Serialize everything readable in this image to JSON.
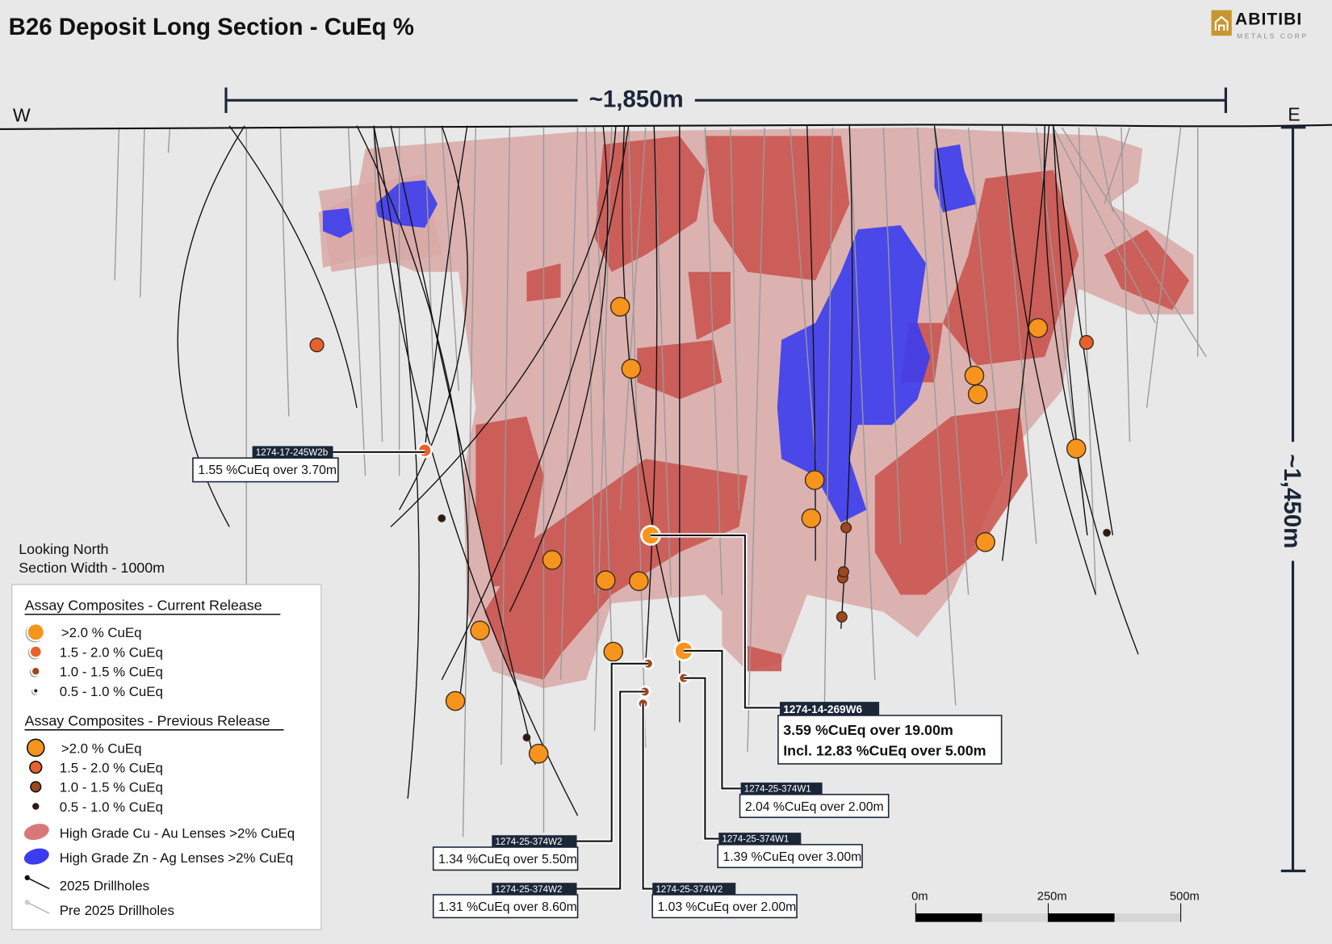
{
  "title": "B26 Deposit Long Section - CuEq %",
  "logo": {
    "name": "ABITIBI",
    "subtitle": "METALS CORP",
    "accent": "#c9952e"
  },
  "dimensions": {
    "width_label": "~1,850m",
    "height_label": "~1,450m"
  },
  "orientation": {
    "west": "W",
    "east": "E"
  },
  "view_notes": [
    "Looking North",
    "Section Width - 1000m"
  ],
  "legend": {
    "current_heading": "Assay Composites - Current Release",
    "current_items": [
      ">2.0 % CuEq",
      "1.5 - 2.0 % CuEq",
      "1.0 - 1.5 % CuEq",
      "0.5 - 1.0 % CuEq"
    ],
    "previous_heading": "Assay Composites - Previous Release",
    "previous_items": [
      ">2.0 % CuEq",
      "1.5 - 2.0 % CuEq",
      "1.0 - 1.5 % CuEq",
      "0.5 - 1.0 % CuEq"
    ],
    "lens_cu": "High Grade Cu - Au Lenses >2% CuEq",
    "lens_zn": "High Grade Zn - Ag Lenses >2% CuEq",
    "holes_2025": "2025 Drillholes",
    "holes_pre": "Pre 2025 Drillholes"
  },
  "colors": {
    "grade_gt2": "#f7941d",
    "grade_15_20": "#e8612c",
    "grade_10_15": "#a0461e",
    "grade_05_10": "#2a1a14",
    "lens_cu": "#d9787a",
    "lens_zn": "#3b3cf0",
    "envelope": "#d8a8a6"
  },
  "callouts": [
    {
      "hole": "1274-17-245W2b",
      "lines": [
        "1.55 %CuEq over 3.70m"
      ]
    },
    {
      "hole": "1274-14-269W6",
      "lines": [
        "3.59 %CuEq over 19.00m",
        "Incl. 12.83 %CuEq over 5.00m"
      ]
    },
    {
      "hole": "1274-25-374W1",
      "lines": [
        "2.04 %CuEq over 2.00m"
      ]
    },
    {
      "hole": "1274-25-374W1",
      "lines": [
        "1.39 %CuEq over 3.00m"
      ]
    },
    {
      "hole": "1274-25-374W2",
      "lines": [
        "1.34 %CuEq over 5.50m"
      ]
    },
    {
      "hole": "1274-25-374W2",
      "lines": [
        "1.31 %CuEq over 8.60m"
      ]
    },
    {
      "hole": "1274-25-374W2",
      "lines": [
        "1.03 %CuEq over 2.00m"
      ]
    }
  ],
  "scale_bar": {
    "ticks": [
      "0m",
      "250m",
      "500m"
    ]
  }
}
